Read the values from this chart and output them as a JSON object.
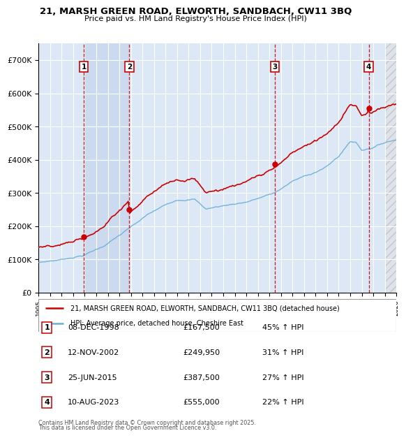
{
  "title_line1": "21, MARSH GREEN ROAD, ELWORTH, SANDBACH, CW11 3BQ",
  "title_line2": "Price paid vs. HM Land Registry's House Price Index (HPI)",
  "ylim": [
    0,
    750000
  ],
  "yticks": [
    0,
    100000,
    200000,
    300000,
    400000,
    500000,
    600000,
    700000
  ],
  "ytick_labels": [
    "£0",
    "£100K",
    "£200K",
    "£300K",
    "£400K",
    "£500K",
    "£600K",
    "£700K"
  ],
  "x_start_year": 1995,
  "x_end_year": 2026,
  "plot_bg": "#dce8f5",
  "red_color": "#cc0000",
  "blue_color": "#6aaed6",
  "dashed_color": "#cc0000",
  "shade_color": "#c8d8ee",
  "purchases": [
    {
      "num": 1,
      "date": "08-DEC-1998",
      "year": 1998.92,
      "price": 167500,
      "pct": "45%",
      "label": "1"
    },
    {
      "num": 2,
      "date": "12-NOV-2002",
      "year": 2002.87,
      "price": 249950,
      "pct": "31%",
      "label": "2"
    },
    {
      "num": 3,
      "date": "25-JUN-2015",
      "year": 2015.48,
      "price": 387500,
      "pct": "27%",
      "label": "3"
    },
    {
      "num": 4,
      "date": "10-AUG-2023",
      "year": 2023.61,
      "price": 555000,
      "pct": "22%",
      "label": "4"
    }
  ],
  "legend_entries": [
    {
      "label": "21, MARSH GREEN ROAD, ELWORTH, SANDBACH, CW11 3BQ (detached house)",
      "color": "#cc0000"
    },
    {
      "label": "HPI: Average price, detached house, Cheshire East",
      "color": "#6aaed6"
    }
  ],
  "footer_line1": "Contains HM Land Registry data © Crown copyright and database right 2025.",
  "footer_line2": "This data is licensed under the Open Government Licence v3.0.",
  "table_rows": [
    [
      "1",
      "08-DEC-1998",
      "£167,500",
      "45% ↑ HPI"
    ],
    [
      "2",
      "12-NOV-2002",
      "£249,950",
      "31% ↑ HPI"
    ],
    [
      "3",
      "25-JUN-2015",
      "£387,500",
      "27% ↑ HPI"
    ],
    [
      "4",
      "10-AUG-2023",
      "£555,000",
      "22% ↑ HPI"
    ]
  ]
}
